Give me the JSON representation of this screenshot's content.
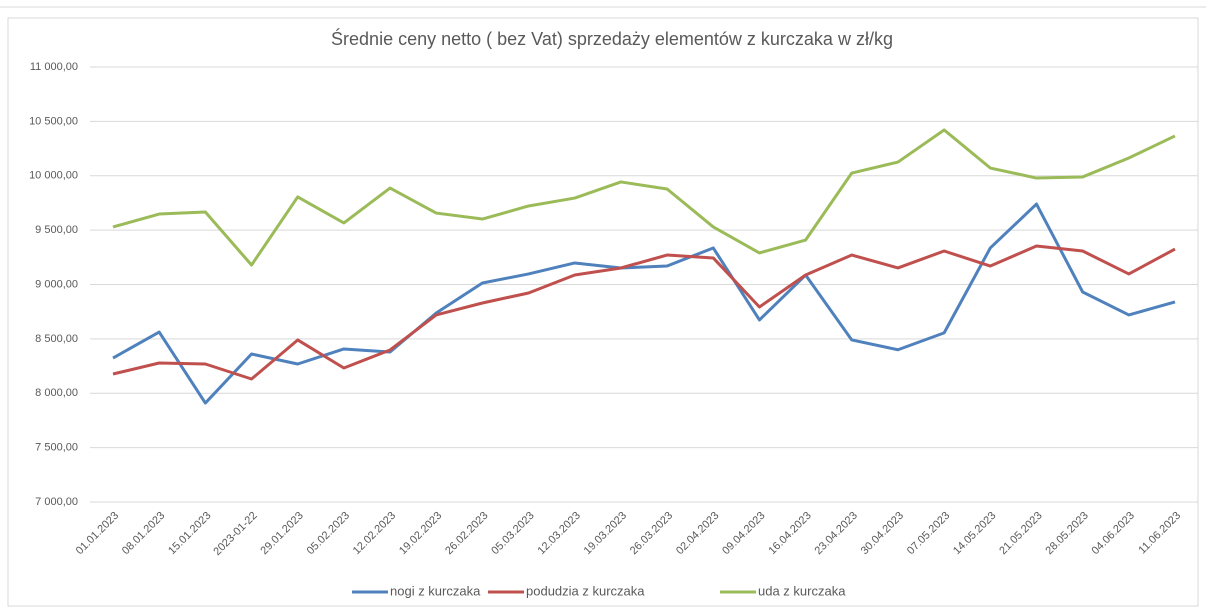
{
  "chart_data": {
    "type": "line",
    "title": "Średnie ceny netto ( bez Vat) sprzedaży elementów z kurczaka w zł/kg",
    "categories": [
      "01.01.2023",
      "08.01.2023",
      "15.01.2023",
      "2023-01-22",
      "29.01.2023",
      "05.02.2023",
      "12.02.2023",
      "19.02.2023",
      "26.02.2023",
      "05.03.2023",
      "12.03.2023",
      "19.03.2023",
      "26.03.2023",
      "02.04.2023",
      "09.04.2023",
      "16.04.2023",
      "23.04.2023",
      "30.04.2023",
      "07.05.2023",
      "14.05.2023",
      "21.05.2023",
      "28.05.2023",
      "04.06.2023",
      "11.06.2023"
    ],
    "series": [
      {
        "name": "nogi z kurczaka",
        "color": "#4f81bd",
        "values": [
          8324,
          8563,
          7910,
          8361,
          8269,
          8407,
          8379,
          8738,
          9014,
          9097,
          9198,
          9152,
          9170,
          9336,
          8674,
          9087,
          8490,
          8400,
          8555,
          9336,
          9740,
          8931,
          8720,
          8840
        ]
      },
      {
        "name": "podudzia z kurczaka",
        "color": "#c0504d",
        "values": [
          8177,
          8278,
          8269,
          8131,
          8490,
          8232,
          8398,
          8720,
          8830,
          8922,
          9087,
          9152,
          9271,
          9244,
          8793,
          9087,
          9271,
          9152,
          9308,
          9170,
          9354,
          9308,
          9097,
          9326
        ]
      },
      {
        "name": "uda z kurczaka",
        "color": "#9bbb59",
        "values": [
          9529,
          9648,
          9667,
          9179,
          9805,
          9566,
          9887,
          9657,
          9602,
          9722,
          9795,
          9943,
          9878,
          9529,
          9290,
          9409,
          10025,
          10126,
          10421,
          10071,
          9979,
          9989,
          10163,
          10366
        ]
      }
    ],
    "ylim": [
      7000,
      11000
    ],
    "yticks": [
      {
        "value": 7000,
        "label": "7 000,00"
      },
      {
        "value": 7500,
        "label": "7 500,00"
      },
      {
        "value": 8000,
        "label": "8 000,00"
      },
      {
        "value": 8500,
        "label": "8 500,00"
      },
      {
        "value": 9000,
        "label": "9 000,00"
      },
      {
        "value": 9500,
        "label": "9 500,00"
      },
      {
        "value": 10000,
        "label": "10 000,00"
      },
      {
        "value": 10500,
        "label": "10 500,00"
      },
      {
        "value": 11000,
        "label": "11 000,00"
      }
    ],
    "grid": true,
    "legend": "bottom"
  }
}
